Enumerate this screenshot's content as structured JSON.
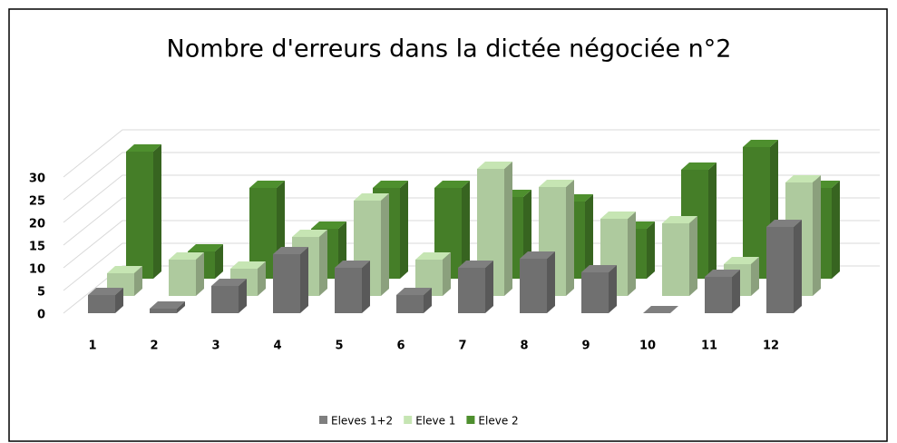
{
  "chart_data": {
    "type": "bar3d",
    "title": "Nombre d'erreurs dans la dictée négociée n°2",
    "categories": [
      "1",
      "2",
      "3",
      "4",
      "5",
      "6",
      "7",
      "8",
      "9",
      "10",
      "11",
      "12"
    ],
    "series": [
      {
        "name": "Eleves 1+2",
        "color": "#7f7f7f",
        "values": [
          4,
          1,
          6,
          13,
          10,
          4,
          10,
          12,
          9,
          0,
          8,
          19
        ]
      },
      {
        "name": "Eleve 1",
        "color": "#c6e5b3",
        "values": [
          5,
          8,
          6,
          13,
          21,
          8,
          28,
          24,
          17,
          16,
          7,
          25
        ]
      },
      {
        "name": "Eleve 2",
        "color": "#4e8f2e",
        "values": [
          28,
          6,
          20,
          11,
          20,
          20,
          18,
          17,
          11,
          24,
          29,
          20
        ]
      }
    ],
    "ylim": [
      0,
      30
    ],
    "yticks": [
      0,
      5,
      10,
      15,
      20,
      25,
      30
    ],
    "grid": true
  }
}
